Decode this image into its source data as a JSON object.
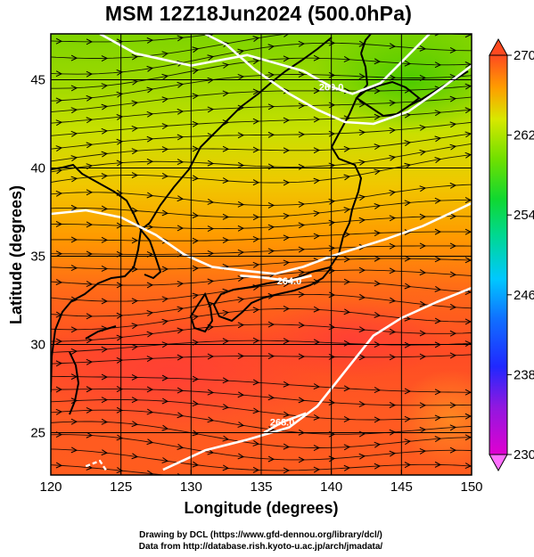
{
  "title": "MSM 12Z18Jun2024 (500.0hPa)",
  "x_label": "Longitude (degrees)",
  "y_label": "Latitude  (degrees)",
  "credit_line_1": "Drawing by DCL (https://www.gfd-dennou.org/library/dcl/)",
  "credit_line_2": "Data from http://database.rish.kyoto-u.ac.jp/arch/jmadata/",
  "chart_data": {
    "type": "heatmap",
    "projection": "equirectangular",
    "variable": "temperature (K) with wind streamlines",
    "xlim": [
      120,
      150
    ],
    "ylim": [
      22.6,
      47.6
    ],
    "x_ticks": [
      120,
      125,
      130,
      135,
      140,
      145,
      150
    ],
    "y_ticks": [
      25,
      30,
      35,
      40,
      45
    ],
    "colorbar": {
      "min": 230,
      "max": 270,
      "ticks": [
        230,
        238,
        246,
        254,
        262,
        270
      ],
      "extend": "both",
      "colors": [
        "#d400c8",
        "#2020ff",
        "#00c8ff",
        "#00d070",
        "#50e000",
        "#d8e800",
        "#ff9000",
        "#ff3000"
      ]
    },
    "contours": [
      {
        "label": "260.0",
        "points": [
          [
            123.5,
            47.6
          ],
          [
            126,
            46.5
          ],
          [
            130,
            45.8
          ],
          [
            134,
            46.4
          ],
          [
            138,
            45.5
          ],
          [
            140,
            44.6
          ],
          [
            141.5,
            44.2
          ],
          [
            143.5,
            44.8
          ],
          [
            146,
            46.8
          ],
          [
            147,
            47.6
          ]
        ]
      },
      {
        "label": "",
        "points": [
          [
            131,
            47.6
          ],
          [
            132.5,
            47
          ],
          [
            134.5,
            45.6
          ],
          [
            137,
            44.2
          ],
          [
            139,
            43.3
          ],
          [
            141,
            42.6
          ],
          [
            143,
            42.5
          ],
          [
            145.5,
            43.2
          ],
          [
            148,
            44.6
          ],
          [
            150,
            45.8
          ]
        ]
      },
      {
        "label": "",
        "points": [
          [
            120,
            37.4
          ],
          [
            122.5,
            37.6
          ],
          [
            125,
            37.2
          ],
          [
            127.5,
            36.2
          ],
          [
            129.5,
            35.1
          ],
          [
            131.5,
            34.4
          ],
          [
            133.5,
            34.2
          ],
          [
            136,
            34
          ],
          [
            138,
            34.4
          ],
          [
            140,
            35
          ],
          [
            142,
            35.5
          ],
          [
            144,
            36
          ],
          [
            146.5,
            36.7
          ],
          [
            150,
            38
          ]
        ]
      },
      {
        "label": "264.0",
        "points": [
          [
            133.5,
            33.9
          ],
          [
            135,
            33.8
          ],
          [
            137,
            33.6
          ],
          [
            138.6,
            33.9
          ]
        ]
      },
      {
        "label": "",
        "points": [
          [
            128,
            22.9
          ],
          [
            131,
            24
          ],
          [
            134,
            24.6
          ],
          [
            137,
            25.3
          ],
          [
            139,
            26.5
          ],
          [
            141,
            28.5
          ],
          [
            143,
            30.5
          ],
          [
            145,
            31.5
          ],
          [
            147.5,
            32.4
          ],
          [
            150,
            33.2
          ]
        ]
      },
      {
        "label": "268.0",
        "points": [
          [
            135.2,
            25
          ],
          [
            136.5,
            25.6
          ],
          [
            138.2,
            26.1
          ]
        ]
      }
    ],
    "highlight_contour": {
      "label": "",
      "points": [
        [
          122.5,
          23.1
        ],
        [
          123.5,
          23.4
        ],
        [
          124,
          22.8
        ]
      ]
    },
    "wind": "predominantly westerly streamlines"
  }
}
